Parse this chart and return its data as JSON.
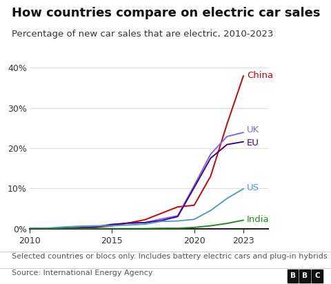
{
  "title": "How countries compare on electric car sales",
  "subtitle": "Percentage of new car sales that are electric, 2010-2023",
  "footnote": "Selected countries or blocs only. Includes battery electric cars and plug-in hybrids",
  "source": "Source: International Energy Agency",
  "background_color": "#ffffff",
  "plot_background_color": "#ffffff",
  "years": [
    2010,
    2011,
    2012,
    2013,
    2014,
    2015,
    2016,
    2017,
    2018,
    2019,
    2020,
    2021,
    2022,
    2023
  ],
  "series": {
    "China": {
      "color": "#cc0000",
      "label_color": "#cc0000",
      "values": [
        0.0,
        0.0,
        0.1,
        0.2,
        0.3,
        0.7,
        1.4,
        2.2,
        3.8,
        5.4,
        5.8,
        13.0,
        26.0,
        38.0
      ]
    },
    "UK": {
      "color": "#7b68ee",
      "label_color": "#7b68ee",
      "values": [
        0.0,
        0.1,
        0.1,
        0.2,
        0.5,
        1.1,
        1.3,
        1.5,
        2.4,
        3.2,
        10.7,
        18.5,
        22.9,
        23.9
      ]
    },
    "EU": {
      "color": "#4b0082",
      "label_color": "#4b0082",
      "values": [
        0.0,
        0.0,
        0.1,
        0.2,
        0.4,
        1.0,
        1.4,
        1.5,
        2.0,
        3.0,
        10.2,
        17.5,
        20.9,
        21.6
      ]
    },
    "US": {
      "color": "#4f9ec4",
      "label_color": "#4f9ec4",
      "values": [
        0.1,
        0.1,
        0.4,
        0.6,
        0.7,
        0.7,
        0.9,
        1.1,
        1.8,
        1.9,
        2.3,
        4.5,
        7.5,
        9.9
      ]
    },
    "India": {
      "color": "#228b22",
      "label_color": "#228b22",
      "values": [
        0.0,
        0.0,
        0.0,
        0.0,
        0.0,
        0.0,
        0.0,
        0.0,
        0.1,
        0.1,
        0.3,
        0.7,
        1.3,
        2.1
      ]
    }
  },
  "ylim": [
    0,
    42
  ],
  "yticks": [
    0,
    10,
    20,
    30,
    40
  ],
  "ytick_labels": [
    "0%",
    "10%",
    "20%",
    "30%",
    "40%"
  ],
  "xlim": [
    2010,
    2024.5
  ],
  "xticks": [
    2010,
    2015,
    2020,
    2023
  ],
  "title_fontsize": 13,
  "subtitle_fontsize": 9.5,
  "tick_fontsize": 9,
  "label_fontsize": 9.5,
  "footnote_fontsize": 8,
  "source_fontsize": 8
}
